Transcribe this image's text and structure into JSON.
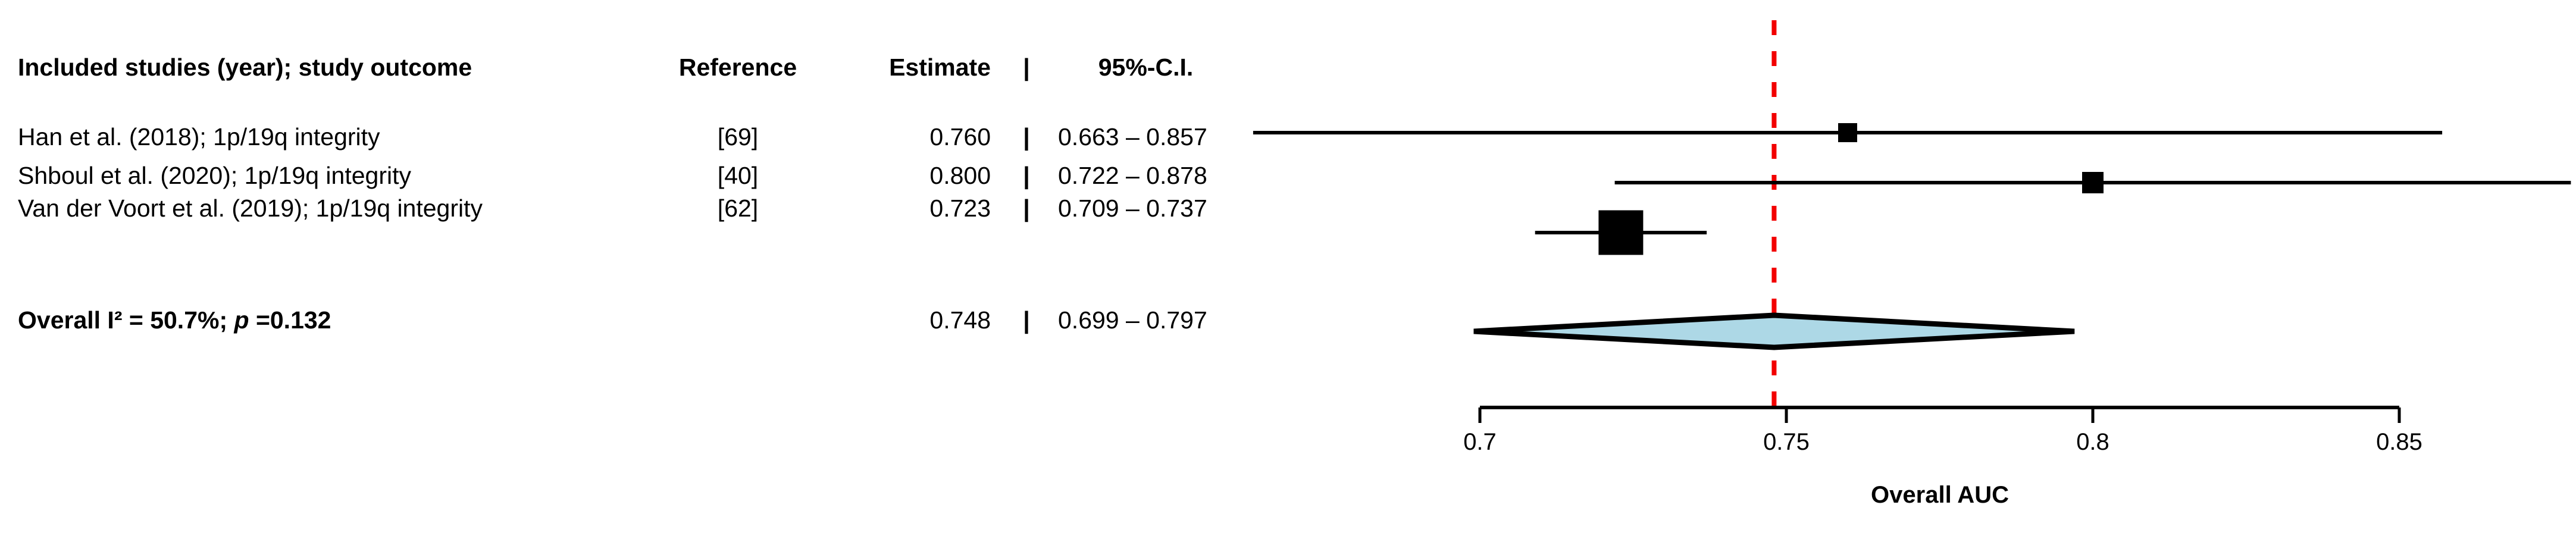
{
  "table": {
    "headers": {
      "study": "Included studies (year); study outcome",
      "reference": "Reference",
      "estimate": "Estimate",
      "separator": "|",
      "ci": "95%-C.I."
    },
    "rows": [
      {
        "study": "Han et al. (2018); 1p/19q integrity",
        "reference": "[69]",
        "estimate": "0.760",
        "separator": "|",
        "ci": "0.663 – 0.857"
      },
      {
        "study": "Shboul et al. (2020); 1p/19q integrity",
        "reference": "[40]",
        "estimate": "0.800",
        "separator": "|",
        "ci": "0.722 – 0.878"
      },
      {
        "study": "Van der Voort et al. (2019); 1p/19q integrity",
        "reference": "[62]",
        "estimate": "0.723",
        "separator": "|",
        "ci": "0.709 – 0.737"
      }
    ],
    "overall": {
      "label_prefix": "Overall I² = 50.7%; ",
      "label_p": "p",
      "label_suffix": " =0.132",
      "estimate": "0.748",
      "separator": "|",
      "ci": "0.699 – 0.797"
    }
  },
  "chart_data": {
    "type": "forest",
    "x_axis": {
      "label": "Overall AUC",
      "range": [
        0.7,
        0.85
      ],
      "ticks": [
        0.7,
        0.75,
        0.8,
        0.85
      ],
      "tick_labels": [
        "0.7",
        "0.75",
        "0.8",
        "0.85"
      ],
      "grid": false
    },
    "reference_line": {
      "value": 0.748,
      "style": "dashed",
      "color": "#f20000"
    },
    "studies": [
      {
        "name": "Han et al. (2018); 1p/19q integrity",
        "reference": "[69]",
        "estimate": 0.76,
        "ci_low": 0.663,
        "ci_high": 0.857
      },
      {
        "name": "Shboul et al. (2020); 1p/19q integrity",
        "reference": "[40]",
        "estimate": 0.8,
        "ci_low": 0.722,
        "ci_high": 0.878
      },
      {
        "name": "Van der Voort et al. (2019); 1p/19q integrity",
        "reference": "[62]",
        "estimate": 0.723,
        "ci_low": 0.709,
        "ci_high": 0.737
      }
    ],
    "overall": {
      "estimate": 0.748,
      "ci_low": 0.699,
      "ci_high": 0.797,
      "i_squared_pct": 50.7,
      "p_value": 0.132,
      "diamond_fill": "#add8e6"
    },
    "colors": {
      "marker": "#000000",
      "diamond_fill": "#add8e6",
      "reference_line": "#f20000"
    }
  }
}
